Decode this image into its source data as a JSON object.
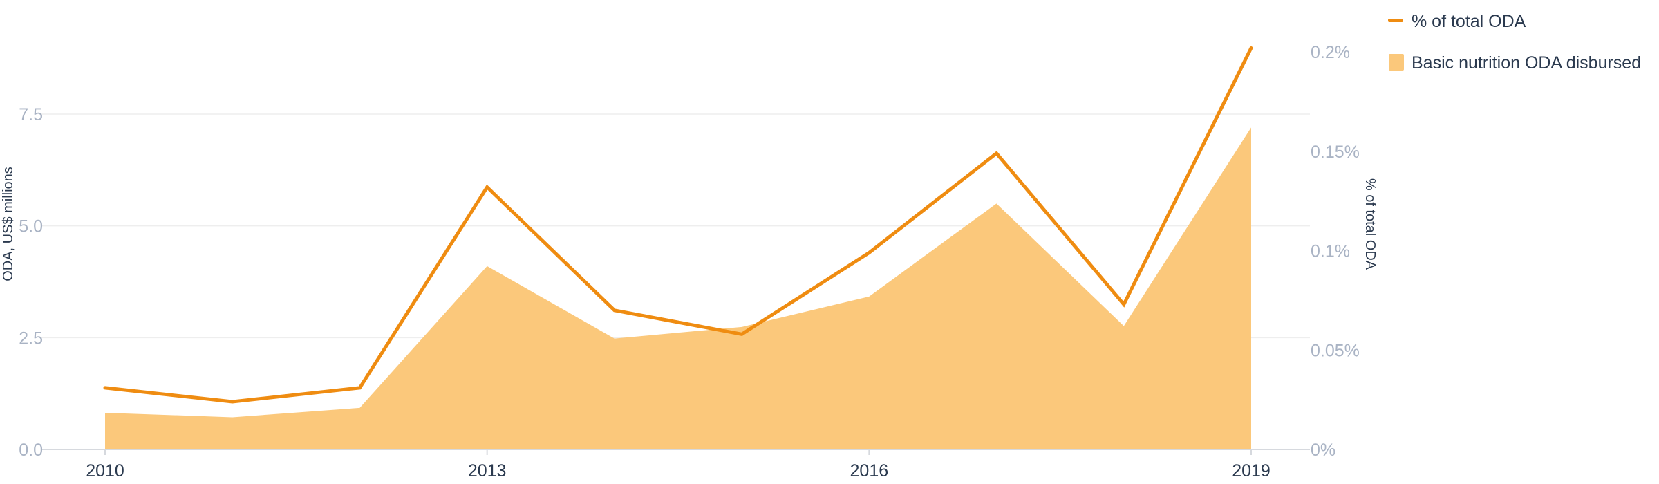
{
  "chart_data": {
    "type": "area+line",
    "x": [
      2010,
      2011,
      2012,
      2013,
      2014,
      2015,
      2016,
      2017,
      2018,
      2019
    ],
    "x_ticks": [
      "2010",
      "2013",
      "2016",
      "2019"
    ],
    "series": [
      {
        "name": "Basic nutrition ODA disbursed",
        "type": "area",
        "axis": "left",
        "color": "#fbc87b",
        "values": [
          0.82,
          0.72,
          0.93,
          4.1,
          2.48,
          2.74,
          3.42,
          5.5,
          2.76,
          7.2
        ]
      },
      {
        "name": "% of total ODA",
        "type": "line",
        "axis": "right",
        "color": "#ef8c11",
        "values": [
          0.031,
          0.024,
          0.031,
          0.132,
          0.07,
          0.058,
          0.099,
          0.149,
          0.073,
          0.202
        ]
      }
    ],
    "ylabel_left": "ODA, US$ millions",
    "ylabel_right": "% of total ODA",
    "ylim_left": [
      0,
      9
    ],
    "ylim_right": [
      0,
      0.2025
    ],
    "left_ticks": [
      0,
      2.5,
      5.0,
      7.5
    ],
    "left_tick_labels": [
      "0.0",
      "2.5",
      "5.0",
      "7.5"
    ],
    "right_ticks": [
      0,
      0.05,
      0.1,
      0.15,
      0.2
    ],
    "right_tick_labels": [
      "0%",
      "0.05%",
      "0.1%",
      "0.15%",
      "0.2%"
    ],
    "grid": true,
    "legend_position": "top-right",
    "colors": {
      "grid": "#eeeeee",
      "tick": "#a9b3c4",
      "text": "#2b3a4f"
    }
  }
}
